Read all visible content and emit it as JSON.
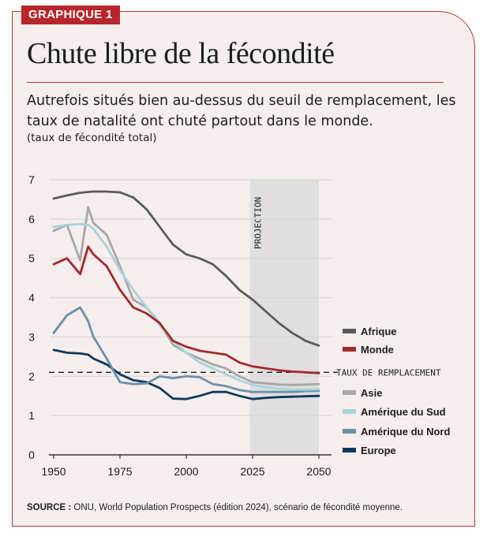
{
  "header": {
    "tag": "GRAPHIQUE 1",
    "title": "Chute libre de la fécondité",
    "subtitle": "Autrefois situés bien au-dessus du seuil de remplacement, les taux de natalité ont chuté partout dans le monde.",
    "unit": "(taux de fécondité total)"
  },
  "footer": {
    "source_label": "SOURCE :",
    "source_text": " ONU, World Population Prospects (édition 2024), scénario de fécondité moyenne."
  },
  "colors": {
    "accent": "#b8262b",
    "background": "#f5eeec",
    "projection_band": "#e0dede"
  },
  "chart_data": {
    "type": "line",
    "title": "Chute libre de la fécondité",
    "xlabel": "",
    "ylabel": "taux de fécondité total",
    "xlim": [
      1950,
      2050
    ],
    "ylim": [
      0,
      7
    ],
    "xticks": [
      1950,
      1975,
      2000,
      2025,
      2050
    ],
    "yticks": [
      0,
      1,
      2,
      3,
      4,
      5,
      6,
      7
    ],
    "grid": true,
    "projection": {
      "label": "PROJECTION",
      "from": 2024,
      "to": 2050
    },
    "reference_line": {
      "label": "TAUX DE REMPLACEMENT",
      "value": 2.1
    },
    "x": [
      1950,
      1955,
      1960,
      1963,
      1965,
      1970,
      1975,
      1980,
      1985,
      1990,
      1995,
      2000,
      2005,
      2010,
      2015,
      2020,
      2025,
      2030,
      2035,
      2040,
      2045,
      2050
    ],
    "series": [
      {
        "name": "Afrique",
        "color": "#5a5a5c",
        "legend_group": "top",
        "values": [
          6.52,
          6.6,
          6.67,
          6.69,
          6.7,
          6.7,
          6.68,
          6.55,
          6.25,
          5.8,
          5.35,
          5.1,
          5.0,
          4.85,
          4.55,
          4.2,
          3.95,
          3.65,
          3.35,
          3.1,
          2.9,
          2.78
        ]
      },
      {
        "name": "Monde",
        "color": "#a32a2c",
        "legend_group": "top",
        "values": [
          4.85,
          5.0,
          4.6,
          5.3,
          5.1,
          4.8,
          4.2,
          3.75,
          3.6,
          3.35,
          2.9,
          2.75,
          2.65,
          2.6,
          2.55,
          2.35,
          2.25,
          2.2,
          2.15,
          2.12,
          2.1,
          2.08
        ]
      },
      {
        "name": "Asie",
        "color": "#a7a7a9",
        "legend_group": "bottom",
        "values": [
          5.7,
          5.85,
          4.95,
          6.3,
          5.9,
          5.6,
          4.8,
          3.95,
          3.75,
          3.35,
          2.8,
          2.6,
          2.45,
          2.3,
          2.2,
          2.0,
          1.85,
          1.82,
          1.79,
          1.78,
          1.79,
          1.8
        ]
      },
      {
        "name": "Amérique du Sud",
        "color": "#a9d3db",
        "legend_group": "bottom",
        "values": [
          5.8,
          5.85,
          5.87,
          5.85,
          5.75,
          5.3,
          4.7,
          4.2,
          3.75,
          3.3,
          2.9,
          2.6,
          2.35,
          2.2,
          2.05,
          1.9,
          1.78,
          1.72,
          1.68,
          1.66,
          1.66,
          1.67
        ]
      },
      {
        "name": "Amérique du Nord",
        "color": "#6b90a9",
        "legend_group": "bottom",
        "values": [
          3.1,
          3.55,
          3.75,
          3.4,
          3.0,
          2.45,
          1.85,
          1.8,
          1.82,
          2.0,
          1.95,
          2.0,
          1.98,
          1.8,
          1.75,
          1.65,
          1.6,
          1.6,
          1.6,
          1.6,
          1.62,
          1.63
        ]
      },
      {
        "name": "Europe",
        "color": "#0d3a5c",
        "legend_group": "bottom",
        "values": [
          2.67,
          2.6,
          2.58,
          2.55,
          2.45,
          2.3,
          2.05,
          1.9,
          1.85,
          1.7,
          1.43,
          1.42,
          1.5,
          1.6,
          1.6,
          1.5,
          1.42,
          1.45,
          1.47,
          1.48,
          1.49,
          1.5
        ]
      }
    ]
  }
}
